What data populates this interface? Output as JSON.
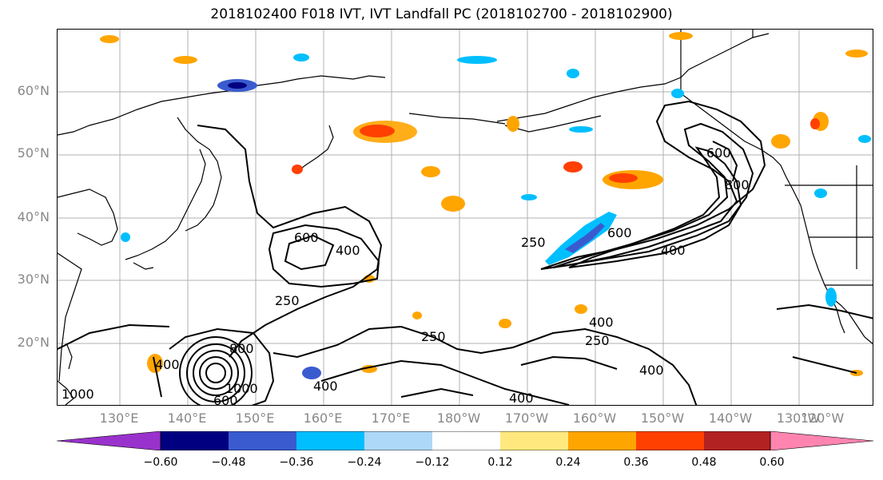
{
  "title": "2018102400 F018 IVT, IVT Landfall PC (2018102700 - 2018102900)",
  "lat_labels": [
    "60°N",
    "50°N",
    "40°N",
    "30°N",
    "20°N"
  ],
  "lon_labels": [
    "130°E",
    "140°E",
    "150°E",
    "160°E",
    "170°E",
    "180°W",
    "170°W",
    "160°W",
    "150°W",
    "140°W",
    "130°W",
    "120°W"
  ],
  "contour_labels": [
    "600",
    "400",
    "250",
    "250",
    "250",
    "600",
    "400",
    "600",
    "800",
    "800",
    "400",
    "400",
    "1000",
    "600",
    "250",
    "400",
    "400",
    "400",
    "1000"
  ],
  "colorbar": {
    "colors": [
      "#9932cc",
      "#000080",
      "#3a5bcf",
      "#00bfff",
      "#add8f7",
      "#ffffff",
      "#ffe97f",
      "#ffa500",
      "#ff4000",
      "#b22222",
      "#ff85b0"
    ],
    "tick_labels": [
      "−0.60",
      "−0.48",
      "−0.36",
      "−0.24",
      "−0.12",
      "0.12",
      "0.24",
      "0.36",
      "0.48",
      "0.60"
    ]
  }
}
